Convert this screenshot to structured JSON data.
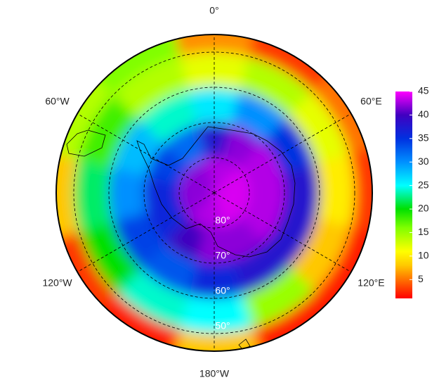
{
  "map": {
    "lon_labels": [
      {
        "value": 0,
        "label": "0°"
      },
      {
        "value": -60,
        "label": "60°W"
      },
      {
        "value": 60,
        "label": "60°E"
      },
      {
        "value": -120,
        "label": "120°W"
      },
      {
        "value": 120,
        "label": "120°E"
      },
      {
        "value": 180,
        "label": "180°W"
      }
    ],
    "lat_labels": [
      {
        "value": -80,
        "label": "80°"
      },
      {
        "value": -70,
        "label": "70°"
      },
      {
        "value": -60,
        "label": "60°"
      },
      {
        "value": -50,
        "label": "50°"
      }
    ],
    "latlim": [
      -90,
      -45
    ],
    "field": {
      "lat_edges": [
        -90,
        -80,
        -70,
        -60,
        -50,
        -45
      ],
      "lon_centers": [
        0,
        30,
        60,
        90,
        120,
        150,
        180,
        -150,
        -120,
        -90,
        -60,
        -30
      ],
      "values": [
        [
          43,
          43,
          44,
          44,
          44,
          44,
          43,
          43,
          42,
          42,
          42,
          42
        ],
        [
          38,
          42,
          43,
          43,
          43,
          42,
          42,
          40,
          36,
          36,
          34,
          32
        ],
        [
          26,
          30,
          35,
          38,
          38,
          38,
          36,
          33,
          34,
          30,
          28,
          24
        ],
        [
          12,
          14,
          12,
          10,
          8,
          15,
          25,
          24,
          20,
          22,
          18,
          14
        ],
        [
          6,
          3,
          5,
          3,
          2,
          2,
          8,
          2,
          3,
          8,
          14,
          16
        ]
      ]
    }
  },
  "colorbar": {
    "lim": [
      1,
      45
    ],
    "ticks": [
      5,
      10,
      15,
      20,
      25,
      30,
      35,
      40,
      45
    ],
    "colorscale": [
      {
        "value": 1,
        "color": "#ff0000"
      },
      {
        "value": 8,
        "color": "#ffc800"
      },
      {
        "value": 11,
        "color": "#ffff00"
      },
      {
        "value": 16,
        "color": "#80ff00"
      },
      {
        "value": 20,
        "color": "#00e000"
      },
      {
        "value": 25,
        "color": "#00ffff"
      },
      {
        "value": 30,
        "color": "#0090ff"
      },
      {
        "value": 35,
        "color": "#0030e0"
      },
      {
        "value": 40,
        "color": "#4000c0"
      },
      {
        "value": 45,
        "color": "#ff00ff"
      }
    ]
  }
}
